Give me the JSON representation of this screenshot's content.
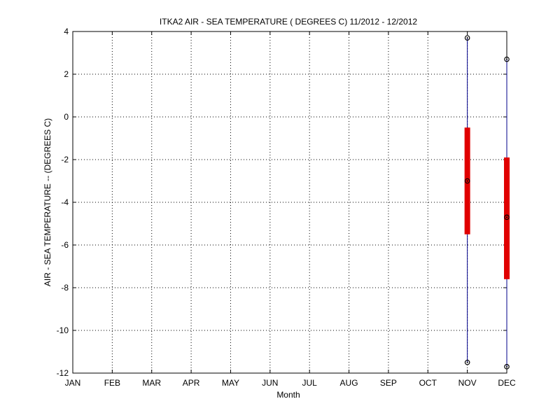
{
  "chart_data": {
    "type": "box",
    "title": "ITKA2  AIR - SEA TEMPERATURE ( DEGREES C) 11/2012 - 12/2012",
    "xlabel": "Month",
    "ylabel": "AIR - SEA TEMPERATURE -- (DEGREES C)",
    "categories": [
      "JAN",
      "FEB",
      "MAR",
      "APR",
      "MAY",
      "JUN",
      "JUL",
      "AUG",
      "SEP",
      "OCT",
      "NOV",
      "DEC"
    ],
    "ylim": [
      -12,
      4
    ],
    "yticks": [
      4,
      2,
      0,
      -2,
      -4,
      -6,
      -8,
      -10,
      -12
    ],
    "grid": true,
    "grid_style": "dotted",
    "series": [
      {
        "category": "NOV",
        "min": -11.5,
        "q1": -5.5,
        "median": -3.0,
        "q3": -0.5,
        "max": 3.7
      },
      {
        "category": "DEC",
        "min": -11.7,
        "q1": -7.6,
        "median": -4.7,
        "q3": -1.9,
        "max": 2.7
      }
    ],
    "colors": {
      "whisker": "#00008b",
      "box": "#e00000",
      "marker": "#000000"
    }
  }
}
